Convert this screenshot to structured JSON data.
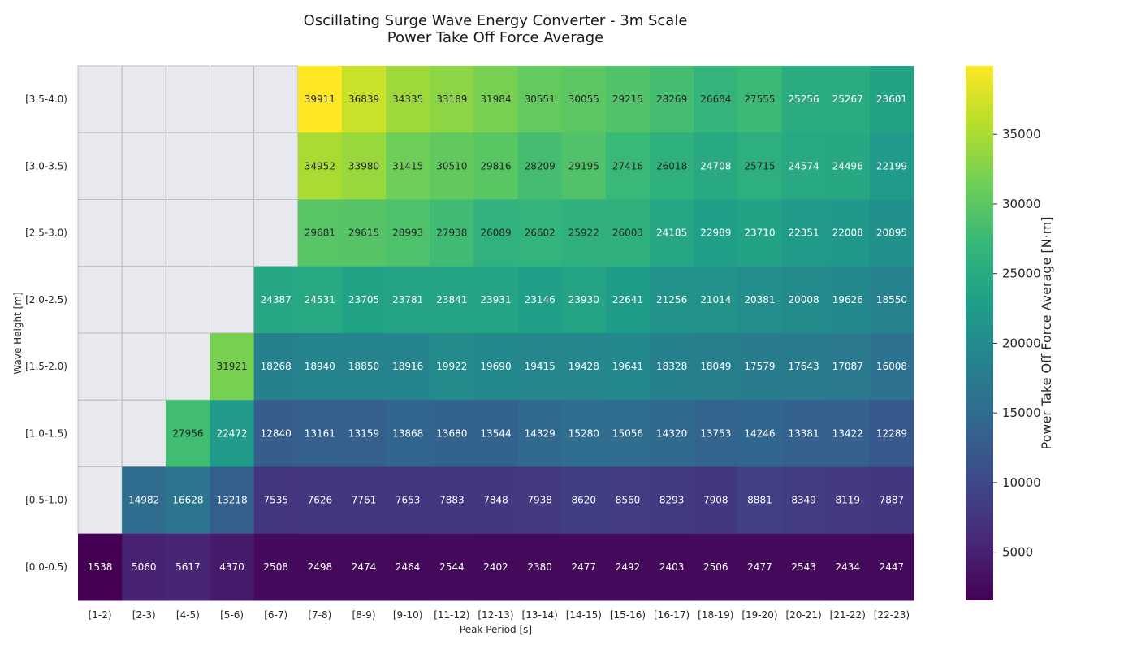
{
  "chart_data": {
    "type": "heatmap",
    "title": [
      "Oscillating Surge Wave Energy Converter - 3m Scale",
      "Power Take Off Force Average"
    ],
    "xlabel": "Peak Period [s]",
    "ylabel": "Wave Height [m]",
    "colorbar_label": "Power Take Off Force Average [N·m]",
    "colorbar_ticks": [
      5000,
      10000,
      15000,
      20000,
      25000,
      30000,
      35000
    ],
    "colorbar_range": [
      1538,
      39911
    ],
    "colormap": "viridis",
    "missing_color": "#e8e8ef",
    "grid_color": "#bdbdbd",
    "x_categories": [
      "[1-2)",
      "[2-3)",
      "[4-5)",
      "[5-6)",
      "[6-7)",
      "[7-8)",
      "[8-9)",
      "[9-10)",
      "[11-12)",
      "[12-13)",
      "[13-14)",
      "[14-15)",
      "[15-16)",
      "[16-17)",
      "[18-19)",
      "[19-20)",
      "[20-21)",
      "[21-22)",
      "[22-23)"
    ],
    "y_categories": [
      "[3.5-4.0)",
      "[3.0-3.5)",
      "[2.5-3.0)",
      "[2.0-2.5)",
      "[1.5-2.0)",
      "[1.0-1.5)",
      "[0.5-1.0)",
      "[0.0-0.5)"
    ],
    "values": [
      [
        null,
        null,
        null,
        null,
        null,
        39911,
        36839,
        34335,
        33189,
        31984,
        30551,
        30055,
        29215,
        28269,
        26684,
        27555,
        25256,
        25267,
        23601
      ],
      [
        null,
        null,
        null,
        null,
        null,
        34952,
        33980,
        31415,
        30510,
        29816,
        28209,
        29195,
        27416,
        26018,
        24708,
        25715,
        24574,
        24496,
        22199
      ],
      [
        null,
        null,
        null,
        null,
        null,
        29681,
        29615,
        28993,
        27938,
        26089,
        26602,
        25922,
        26003,
        24185,
        22989,
        23710,
        22351,
        22008,
        20895
      ],
      [
        null,
        null,
        null,
        null,
        24387,
        24531,
        23705,
        23781,
        23841,
        23931,
        23146,
        23930,
        22641,
        21256,
        21014,
        20381,
        20008,
        19626,
        18550
      ],
      [
        null,
        null,
        null,
        31921,
        18268,
        18940,
        18850,
        18916,
        19922,
        19690,
        19415,
        19428,
        19641,
        18328,
        18049,
        17579,
        17643,
        17087,
        16008
      ],
      [
        null,
        null,
        27956,
        22472,
        12840,
        13161,
        13159,
        13868,
        13680,
        13544,
        14329,
        15280,
        15056,
        14320,
        13753,
        14246,
        13381,
        13422,
        12289
      ],
      [
        null,
        14982,
        16628,
        13218,
        7535,
        7626,
        7761,
        7653,
        7883,
        7848,
        7938,
        8620,
        8560,
        8293,
        7908,
        8881,
        8349,
        8119,
        7887
      ],
      [
        1538,
        5060,
        5617,
        4370,
        2508,
        2498,
        2474,
        2464,
        2544,
        2402,
        2380,
        2477,
        2492,
        2403,
        2506,
        2477,
        2543,
        2434,
        2447
      ]
    ]
  }
}
